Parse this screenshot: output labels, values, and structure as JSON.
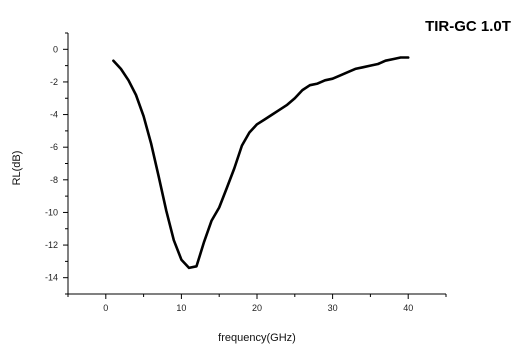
{
  "chart_data": {
    "type": "line",
    "title": "TIR-GC 1.0T",
    "xlabel": "frequency(GHz)",
    "ylabel": "RL(dB)",
    "xlim": [
      -5,
      45
    ],
    "ylim": [
      -15,
      1
    ],
    "xticks": [
      0,
      10,
      20,
      30,
      40
    ],
    "xtick_labels": [
      "0",
      "10",
      "20",
      "30",
      "40"
    ],
    "yticks": [
      0,
      -2,
      -4,
      -6,
      -8,
      -10,
      -12,
      -14
    ],
    "ytick_labels": [
      "0",
      "-2",
      "-4",
      "-6",
      "-8",
      "-10",
      "-12",
      "-14"
    ],
    "grid": false,
    "legend": "none",
    "line_color": "#000000",
    "series": [
      {
        "x": [
          1,
          2,
          3,
          4,
          5,
          6,
          7,
          8,
          9,
          10,
          11,
          12,
          13,
          14,
          15,
          16,
          17,
          18,
          19,
          20,
          21,
          22,
          23,
          24,
          25,
          26,
          27,
          28,
          29,
          30,
          31,
          32,
          33,
          34,
          35,
          36,
          37,
          38,
          39,
          40
        ],
        "y": [
          -0.7,
          -1.2,
          -1.9,
          -2.8,
          -4.1,
          -5.8,
          -7.8,
          -9.9,
          -11.7,
          -12.9,
          -13.4,
          -13.3,
          -11.8,
          -10.5,
          -9.7,
          -8.5,
          -7.3,
          -5.9,
          -5.1,
          -4.6,
          -4.3,
          -4.0,
          -3.7,
          -3.4,
          -3.0,
          -2.5,
          -2.2,
          -2.1,
          -1.9,
          -1.8,
          -1.6,
          -1.4,
          -1.2,
          -1.1,
          -1.0,
          -0.9,
          -0.7,
          -0.6,
          -0.5,
          -0.5
        ]
      }
    ]
  }
}
